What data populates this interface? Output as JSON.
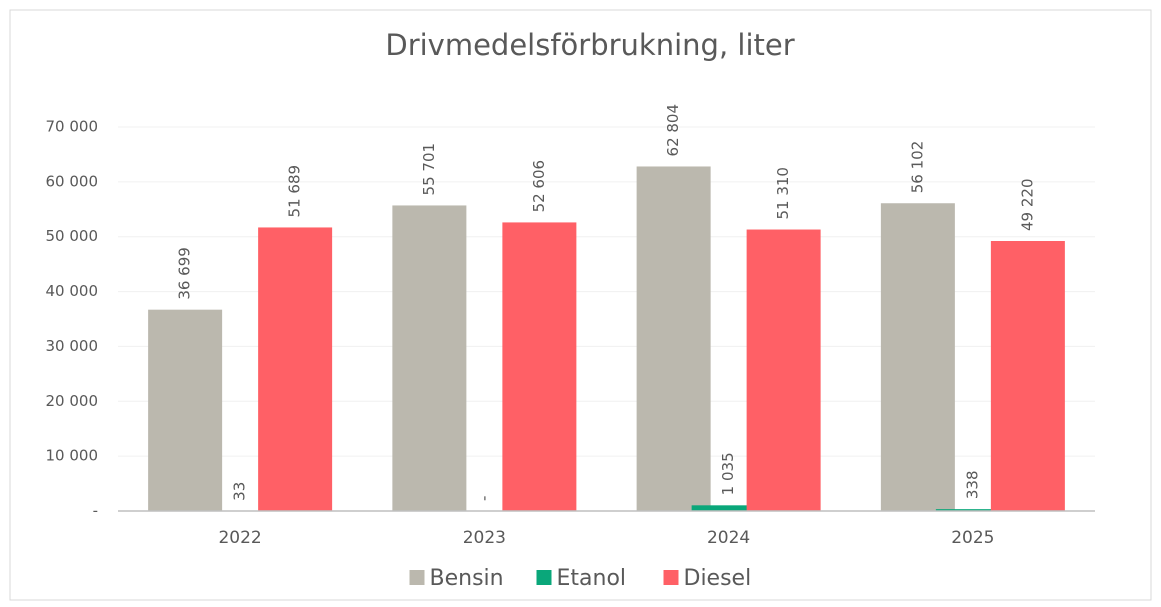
{
  "chart_data": {
    "type": "bar",
    "title": "Drivmedelsförbrukning, liter",
    "categories": [
      "2022",
      "2023",
      "2024",
      "2025"
    ],
    "series": [
      {
        "name": "Bensin",
        "color": "#bbb8ae",
        "values": [
          36699,
          55701,
          62804,
          56102
        ],
        "value_labels": [
          "36 699",
          "55 701",
          "62 804",
          "56 102"
        ]
      },
      {
        "name": "Etanol",
        "color": "#0aa77a",
        "values": [
          33,
          0,
          1035,
          338
        ],
        "value_labels": [
          "33",
          "-",
          "1 035",
          "338"
        ]
      },
      {
        "name": "Diesel",
        "color": "#ff6066",
        "values": [
          51689,
          52606,
          51310,
          49220
        ],
        "value_labels": [
          "51 689",
          "52 606",
          "51 310",
          "49 220"
        ]
      }
    ],
    "ylim": [
      0,
      70000
    ],
    "yticks": [
      {
        "value": 0,
        "label": "-"
      },
      {
        "value": 10000,
        "label": "10 000"
      },
      {
        "value": 20000,
        "label": "20 000"
      },
      {
        "value": 30000,
        "label": "30 000"
      },
      {
        "value": 40000,
        "label": "40 000"
      },
      {
        "value": 50000,
        "label": "50 000"
      },
      {
        "value": 60000,
        "label": "60 000"
      },
      {
        "value": 70000,
        "label": "70 000"
      }
    ],
    "grid": true,
    "legend": "bottom"
  }
}
